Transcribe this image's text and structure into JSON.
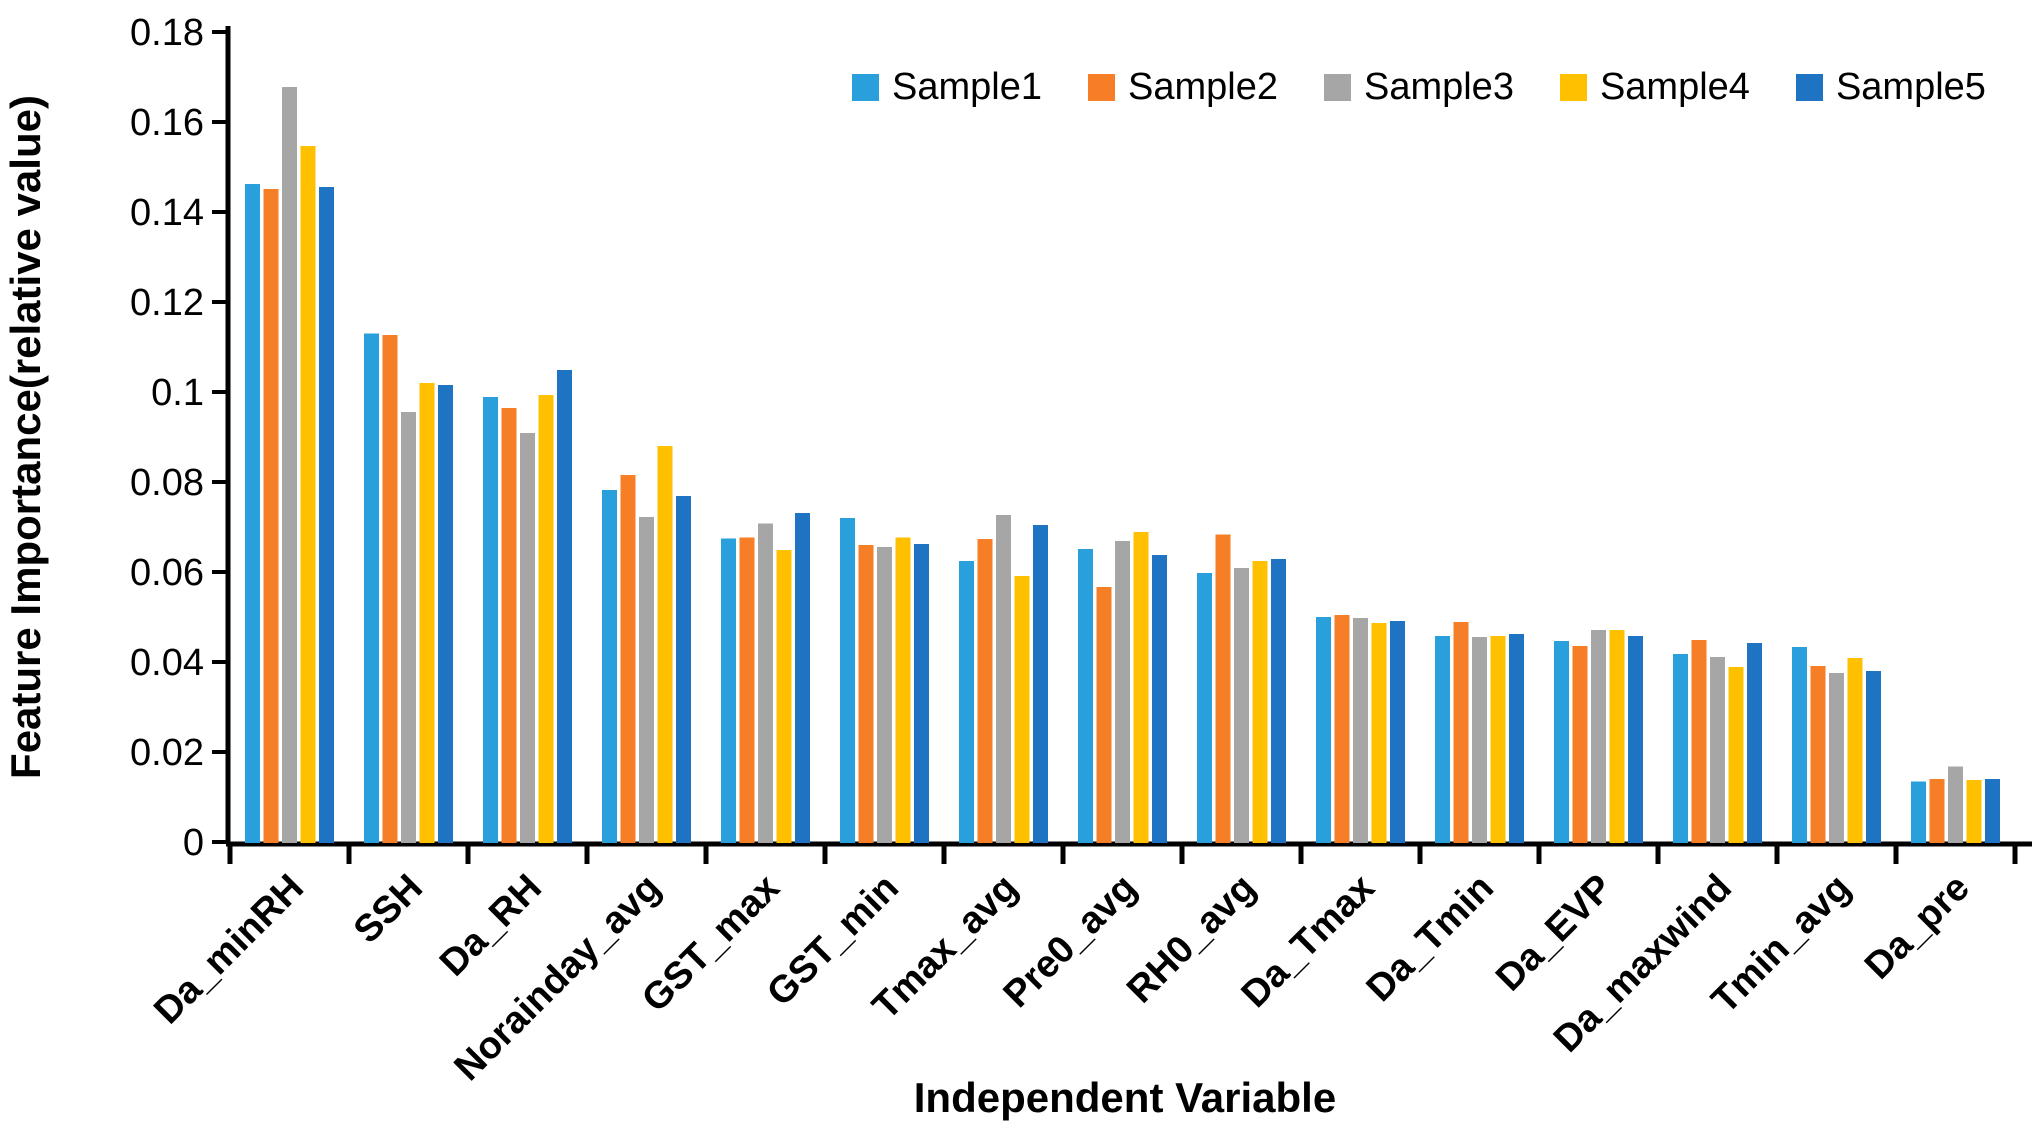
{
  "chart_data": {
    "type": "bar",
    "title": "",
    "xlabel": "Independent Variable",
    "ylabel": "Feature Importance(relative value)",
    "ylim": [
      0,
      0.18
    ],
    "ytick_interval": 0.02,
    "ytick_labels": [
      "0",
      "0.02",
      "0.04",
      "0.06",
      "0.08",
      "0.1",
      "0.12",
      "0.14",
      "0.16",
      "0.18"
    ],
    "grid": false,
    "legend_position": "top-center",
    "categories": [
      "Da_minRH",
      "SSH",
      "Da_RH",
      "Norainday_avg",
      "GST_max",
      "GST_min",
      "Tmax_avg",
      "Pre0_avg",
      "RH0_avg",
      "Da_Tmax",
      "Da_Tmin",
      "Da_EVP",
      "Da_maxwind",
      "Tmin_avg",
      "Da_pre"
    ],
    "series": [
      {
        "name": "Sample1",
        "color": "#29A0DB",
        "values": [
          0.1462,
          0.113,
          0.0989,
          0.0782,
          0.0675,
          0.072,
          0.0624,
          0.0651,
          0.0598,
          0.05,
          0.0458,
          0.0447,
          0.0418,
          0.0433,
          0.0134
        ]
      },
      {
        "name": "Sample2",
        "color": "#F57E27",
        "values": [
          0.1451,
          0.1127,
          0.0964,
          0.0816,
          0.0677,
          0.066,
          0.0673,
          0.0567,
          0.0683,
          0.0504,
          0.0489,
          0.0436,
          0.0449,
          0.0391,
          0.014
        ]
      },
      {
        "name": "Sample3",
        "color": "#A6A6A6",
        "values": [
          0.1678,
          0.0956,
          0.0909,
          0.0722,
          0.0708,
          0.0656,
          0.0727,
          0.0669,
          0.0609,
          0.0498,
          0.0456,
          0.0471,
          0.0411,
          0.0376,
          0.0168
        ]
      },
      {
        "name": "Sample4",
        "color": "#FFC000",
        "values": [
          0.1547,
          0.102,
          0.0993,
          0.088,
          0.0649,
          0.0677,
          0.0591,
          0.0689,
          0.0624,
          0.0487,
          0.0458,
          0.0471,
          0.0389,
          0.0409,
          0.0138
        ]
      },
      {
        "name": "Sample5",
        "color": "#1E73C2",
        "values": [
          0.1456,
          0.1016,
          0.1049,
          0.0769,
          0.0731,
          0.0662,
          0.0704,
          0.0638,
          0.0629,
          0.0491,
          0.0462,
          0.0458,
          0.0442,
          0.038,
          0.014
        ]
      }
    ]
  }
}
